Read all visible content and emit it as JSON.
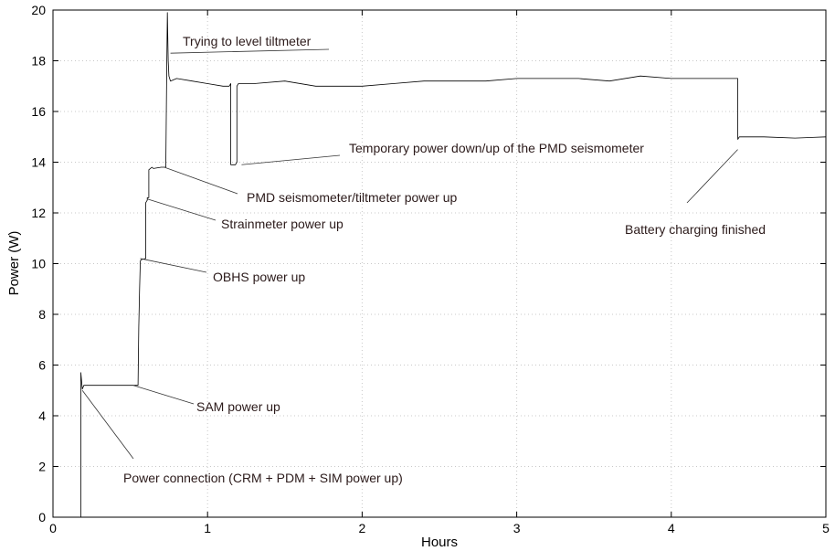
{
  "chart_data": {
    "type": "line",
    "title": "",
    "xlabel": "Hours",
    "ylabel": "Power (W)",
    "xlim": [
      0,
      5
    ],
    "ylim": [
      0,
      20
    ],
    "xticks": [
      0,
      1,
      2,
      3,
      4,
      5
    ],
    "yticks": [
      0,
      2,
      4,
      6,
      8,
      10,
      12,
      14,
      16,
      18,
      20
    ],
    "grid": true,
    "legend": "none",
    "series": [
      {
        "color": "#000000",
        "x": [
          0.18,
          0.18,
          0.19,
          0.2,
          0.3,
          0.45,
          0.55,
          0.555,
          0.56,
          0.565,
          0.57,
          0.6,
          0.6,
          0.61,
          0.61,
          0.62,
          0.62,
          0.63,
          0.63,
          0.64,
          0.65,
          0.7,
          0.73,
          0.735,
          0.74,
          0.745,
          0.75,
          0.76,
          0.8,
          0.9,
          1.0,
          1.1,
          1.14,
          1.15,
          1.15,
          1.17,
          1.18,
          1.19,
          1.19,
          1.2,
          1.3,
          1.5,
          1.7,
          1.9,
          2.0,
          2.2,
          2.4,
          2.6,
          2.8,
          3.0,
          3.2,
          3.4,
          3.6,
          3.8,
          4.0,
          4.2,
          4.4,
          4.43,
          4.43,
          4.44,
          4.6,
          4.8,
          5.0
        ],
        "y": [
          0,
          5.7,
          5.05,
          5.2,
          5.2,
          5.2,
          5.2,
          7.5,
          9.0,
          10.1,
          10.15,
          10.2,
          12.4,
          12.5,
          12.6,
          12.6,
          13.7,
          13.75,
          13.75,
          13.8,
          13.75,
          13.8,
          13.8,
          17.3,
          19.9,
          18.0,
          17.4,
          17.2,
          17.3,
          17.2,
          17.1,
          17.0,
          17.0,
          17.1,
          13.9,
          13.9,
          13.9,
          14.0,
          17.0,
          17.1,
          17.1,
          17.2,
          17.0,
          17.0,
          17.0,
          17.1,
          17.2,
          17.2,
          17.2,
          17.3,
          17.3,
          17.3,
          17.2,
          17.4,
          17.3,
          17.3,
          17.3,
          17.3,
          14.9,
          15.0,
          15.0,
          14.95,
          15.0
        ]
      }
    ],
    "annotations": [
      {
        "text": "Trying to level tiltmeter",
        "x": 0.76,
        "y": 18.3
      },
      {
        "text": "Temporary power down/up of the PMD seismometer",
        "x": 1.22,
        "y": 13.9
      },
      {
        "text": "PMD seismometer/tiltmeter power up",
        "x": 0.72,
        "y": 13.8
      },
      {
        "text": "Strainmeter power up",
        "x": 0.61,
        "y": 12.55
      },
      {
        "text": "OBHS power up",
        "x": 0.565,
        "y": 10.2
      },
      {
        "text": "Battery charging finished",
        "x": 4.43,
        "y": 14.5
      },
      {
        "text": "SAM power up",
        "x": 0.52,
        "y": 5.2
      },
      {
        "text": "Power connection (CRM + PDM + SIM power up)",
        "x": 0.19,
        "y": 5.0
      }
    ]
  }
}
